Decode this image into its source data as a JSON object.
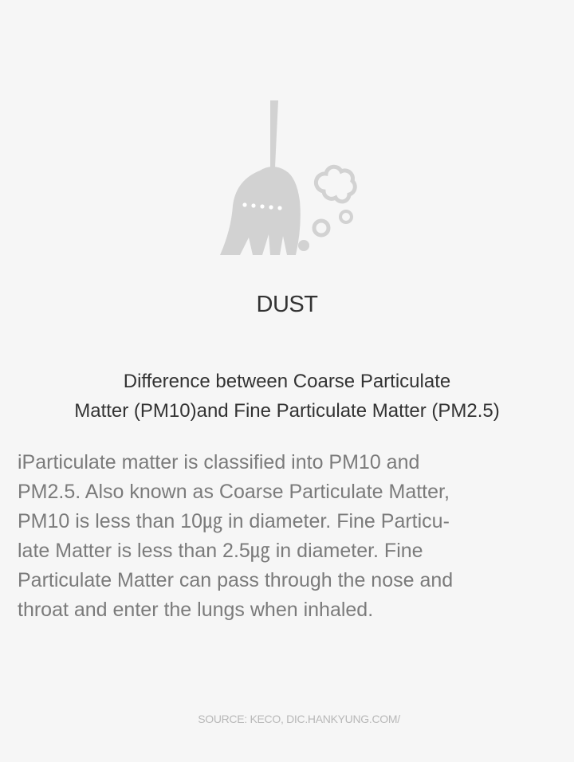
{
  "illustration": {
    "icon": "broom-icon",
    "color": "#d2d2d2"
  },
  "title": "DUST",
  "subtitle": {
    "lines": [
      "Difference between Coarse Particulate",
      "Matter (PM10)and Fine Particulate Matter (PM2.5)"
    ]
  },
  "body": {
    "lines": [
      "iParticulate matter is classified into PM10 and",
      "PM2.5. Also known as Coarse Particulate Matter,",
      "PM10 is less than 10㎍ in diameter. Fine Particu-",
      "late Matter is less than 2.5㎍ in diameter. Fine",
      "Particulate Matter can pass through the nose and",
      "throat and enter the lungs when inhaled."
    ]
  },
  "source": "SOURCE: KECO, DIC.HANKYUNG.COM/",
  "colors": {
    "background": "#f6f6f6",
    "heading": "#333333",
    "body": "#7b7b7b",
    "source": "#b8b8b8"
  }
}
